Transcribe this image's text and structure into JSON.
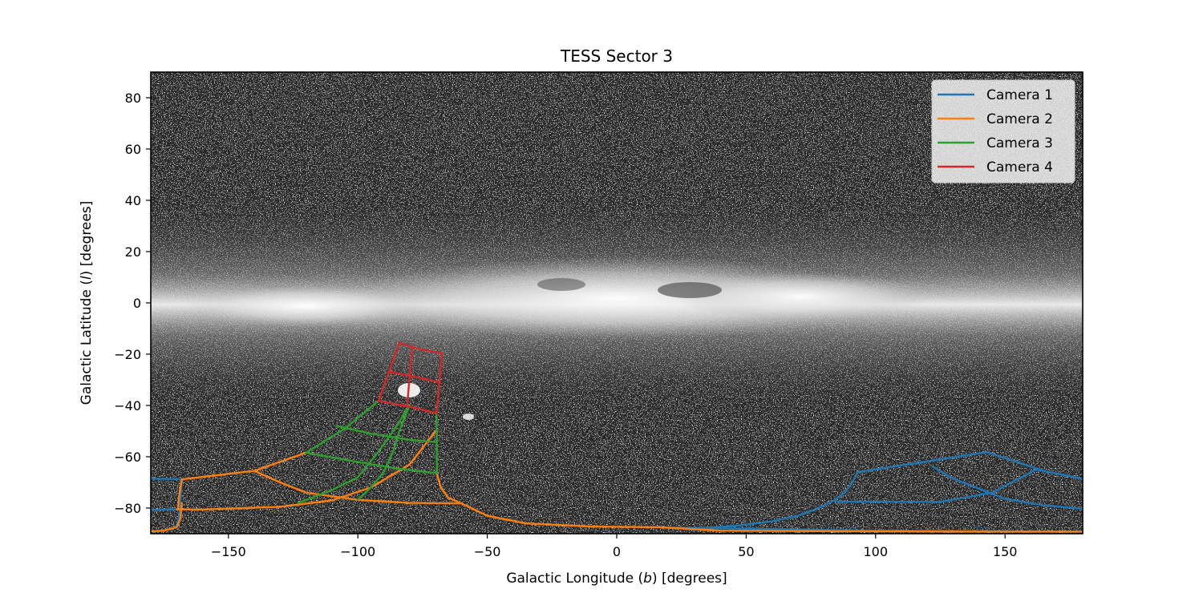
{
  "chart_data": {
    "type": "line",
    "title": "TESS Sector 3",
    "xlabel_prefix": "Galactic Longitude (",
    "xlabel_var": "b",
    "xlabel_suffix": ") [degrees]",
    "ylabel_prefix": "Galactic Latitude (",
    "ylabel_var": "l",
    "ylabel_suffix": ") [degrees]",
    "xlim": [
      -180,
      180
    ],
    "ylim": [
      -90,
      90
    ],
    "xticks": [
      -150,
      -100,
      -50,
      0,
      50,
      100,
      150
    ],
    "yticks": [
      -80,
      -60,
      -40,
      -20,
      0,
      20,
      40,
      60,
      80
    ],
    "background": "all-sky Milky Way star map (grayscale)",
    "grid": false,
    "legend_position": "top-right",
    "series": [
      {
        "name": "Camera 1",
        "color": "#1f77b4",
        "segments": [
          [
            [
              -180,
              -68.5
            ],
            [
              -168,
              -68.8
            ]
          ],
          [
            [
              -180,
              -80.6
            ],
            [
              -170,
              -80.5
            ]
          ],
          [
            [
              -172,
              -88.5
            ],
            [
              -170,
              -87
            ],
            [
              -169,
              -83
            ],
            [
              -168.5,
              -77
            ],
            [
              -168,
              -69
            ]
          ],
          [
            [
              93,
              -66
            ],
            [
              143,
              -58.2
            ]
          ],
          [
            [
              93,
              -66
            ],
            [
              91,
              -70
            ],
            [
              88,
              -74
            ],
            [
              84,
              -77
            ],
            [
              78,
              -80
            ],
            [
              70,
              -83
            ],
            [
              60,
              -85.2
            ],
            [
              45,
              -87
            ],
            [
              30,
              -88
            ]
          ],
          [
            [
              85,
              -77.5
            ],
            [
              125,
              -77.6
            ],
            [
              145,
              -74
            ],
            [
              162,
              -65
            ],
            [
              180,
              -68.6
            ]
          ],
          [
            [
              122,
              -63.8
            ],
            [
              130,
              -68.5
            ],
            [
              140,
              -72.5
            ],
            [
              150,
              -76.4
            ],
            [
              165,
              -78.9
            ],
            [
              180,
              -80.3
            ]
          ],
          [
            [
              143,
              -58.2
            ],
            [
              150,
              -60.5
            ],
            [
              165,
              -65.5
            ],
            [
              180,
              -68.6
            ]
          ],
          [
            [
              20,
              -87.6
            ],
            [
              60,
              -88.2
            ],
            [
              100,
              -88.8
            ],
            [
              180,
              -89.2
            ]
          ]
        ]
      },
      {
        "name": "Camera 2",
        "color": "#ff7f0e",
        "segments": [
          [
            [
              -168,
              -68.8
            ],
            [
              -140,
              -65.5
            ],
            [
              -120,
              -58.4
            ]
          ],
          [
            [
              -168,
              -68.8
            ],
            [
              -169,
              -75
            ],
            [
              -169.5,
              -80.5
            ]
          ],
          [
            [
              -170,
              -80.5
            ],
            [
              -160,
              -80.6
            ],
            [
              -130,
              -79.5
            ],
            [
              -110,
              -77
            ],
            [
              -95,
              -72
            ],
            [
              -80,
              -63
            ],
            [
              -70,
              -50
            ]
          ],
          [
            [
              -140,
              -65.5
            ],
            [
              -130,
              -70
            ],
            [
              -120,
              -74
            ],
            [
              -100,
              -76.8
            ],
            [
              -80,
              -78
            ],
            [
              -60,
              -78.2
            ]
          ],
          [
            [
              -69.5,
              -66.4
            ],
            [
              -68,
              -72
            ],
            [
              -65,
              -76
            ],
            [
              -60,
              -78.2
            ],
            [
              -50,
              -83
            ],
            [
              -35,
              -86
            ],
            [
              -10,
              -87.2
            ],
            [
              17,
              -87.5
            ]
          ],
          [
            [
              -180,
              -89.1
            ],
            [
              -175,
              -88.8
            ],
            [
              -170,
              -87.5
            ],
            [
              -168.5,
              -84
            ],
            [
              -168,
              -78
            ]
          ],
          [
            [
              17,
              -87.5
            ],
            [
              40,
              -88.8
            ],
            [
              80,
              -89
            ],
            [
              130,
              -89.2
            ],
            [
              180,
              -89.2
            ]
          ]
        ]
      },
      {
        "name": "Camera 3",
        "color": "#2ca02c",
        "segments": [
          [
            [
              -120,
              -58.4
            ],
            [
              -105,
              -49
            ],
            [
              -92,
              -38.2
            ]
          ],
          [
            [
              -120,
              -58.4
            ],
            [
              -100,
              -62
            ],
            [
              -85,
              -64.6
            ],
            [
              -69.5,
              -66.4
            ]
          ],
          [
            [
              -108,
              -48
            ],
            [
              -95,
              -51
            ],
            [
              -80,
              -53.4
            ],
            [
              -69.5,
              -54.3
            ]
          ],
          [
            [
              -100,
              -76.8
            ],
            [
              -95,
              -72
            ],
            [
              -90,
              -66
            ],
            [
              -86,
              -57
            ],
            [
              -84,
              -50
            ],
            [
              -80,
              -39.8
            ]
          ],
          [
            [
              -69.5,
              -66.4
            ],
            [
              -69.5,
              -54.3
            ],
            [
              -69.6,
              -43
            ]
          ],
          [
            [
              -123,
              -78
            ],
            [
              -110,
              -73
            ],
            [
              -100,
              -68
            ],
            [
              -92,
              -58
            ],
            [
              -85,
              -48
            ],
            [
              -80,
              -39.8
            ]
          ]
        ]
      },
      {
        "name": "Camera 4",
        "color": "#d62728",
        "segments": [
          [
            [
              -92,
              -38.2
            ],
            [
              -88,
              -26.8
            ],
            [
              -84,
              -15.6
            ]
          ],
          [
            [
              -84,
              -15.6
            ],
            [
              -77,
              -17.8
            ],
            [
              -67.5,
              -19.7
            ]
          ],
          [
            [
              -67.5,
              -19.7
            ],
            [
              -68.5,
              -31
            ],
            [
              -69.6,
              -43
            ]
          ],
          [
            [
              -92,
              -38.2
            ],
            [
              -80,
              -40.5
            ],
            [
              -69.6,
              -43
            ]
          ],
          [
            [
              -88,
              -26.8
            ],
            [
              -78,
              -28.8
            ],
            [
              -68.5,
              -31
            ]
          ],
          [
            [
              -79,
              -17.7
            ],
            [
              -80,
              -28.5
            ],
            [
              -81,
              -40.4
            ]
          ]
        ]
      }
    ]
  },
  "legend": {
    "items": [
      "Camera 1",
      "Camera 2",
      "Camera 3",
      "Camera 4"
    ]
  }
}
